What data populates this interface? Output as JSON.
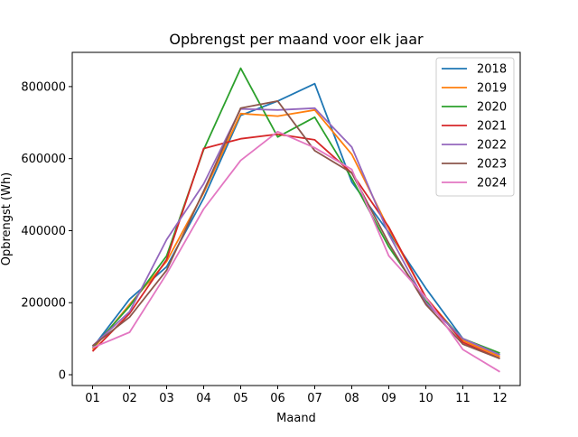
{
  "chart_data": {
    "type": "line",
    "title": "Opbrengst per maand voor elk jaar",
    "xlabel": "Maand",
    "ylabel": "Opbrengst (Wh)",
    "categories": [
      "01",
      "02",
      "03",
      "04",
      "05",
      "06",
      "07",
      "08",
      "09",
      "10",
      "11",
      "12"
    ],
    "ylim": [
      -30000,
      895000
    ],
    "yticks": [
      0,
      200000,
      400000,
      600000,
      800000
    ],
    "ytick_labels": [
      "0",
      "200000",
      "400000",
      "600000",
      "800000"
    ],
    "grid": false,
    "legend_position": "top-right",
    "series": [
      {
        "name": "2018",
        "color": "#1f77b4",
        "values": [
          75000,
          210000,
          300000,
          490000,
          720000,
          760000,
          808000,
          535000,
          395000,
          240000,
          100000,
          55000
        ]
      },
      {
        "name": "2019",
        "color": "#ff7f0e",
        "values": [
          70000,
          195000,
          315000,
          505000,
          725000,
          718000,
          735000,
          612000,
          405000,
          215000,
          95000,
          50000
        ]
      },
      {
        "name": "2020",
        "color": "#2ca02c",
        "values": [
          75000,
          190000,
          330000,
          625000,
          851000,
          660000,
          715000,
          545000,
          355000,
          205000,
          100000,
          60000
        ]
      },
      {
        "name": "2021",
        "color": "#d62728",
        "values": [
          65000,
          170000,
          320000,
          628000,
          655000,
          668000,
          652000,
          560000,
          410000,
          215000,
          90000,
          45000
        ]
      },
      {
        "name": "2022",
        "color": "#9467bd",
        "values": [
          80000,
          175000,
          375000,
          530000,
          738000,
          735000,
          740000,
          632000,
          390000,
          200000,
          100000,
          55000
        ]
      },
      {
        "name": "2023",
        "color": "#8c564b",
        "values": [
          80000,
          160000,
          290000,
          510000,
          740000,
          760000,
          622000,
          560000,
          365000,
          195000,
          85000,
          45000
        ]
      },
      {
        "name": "2024",
        "color": "#e377c2",
        "values": [
          75000,
          118000,
          280000,
          460000,
          595000,
          675000,
          630000,
          570000,
          330000,
          215000,
          70000,
          8000
        ]
      }
    ]
  }
}
